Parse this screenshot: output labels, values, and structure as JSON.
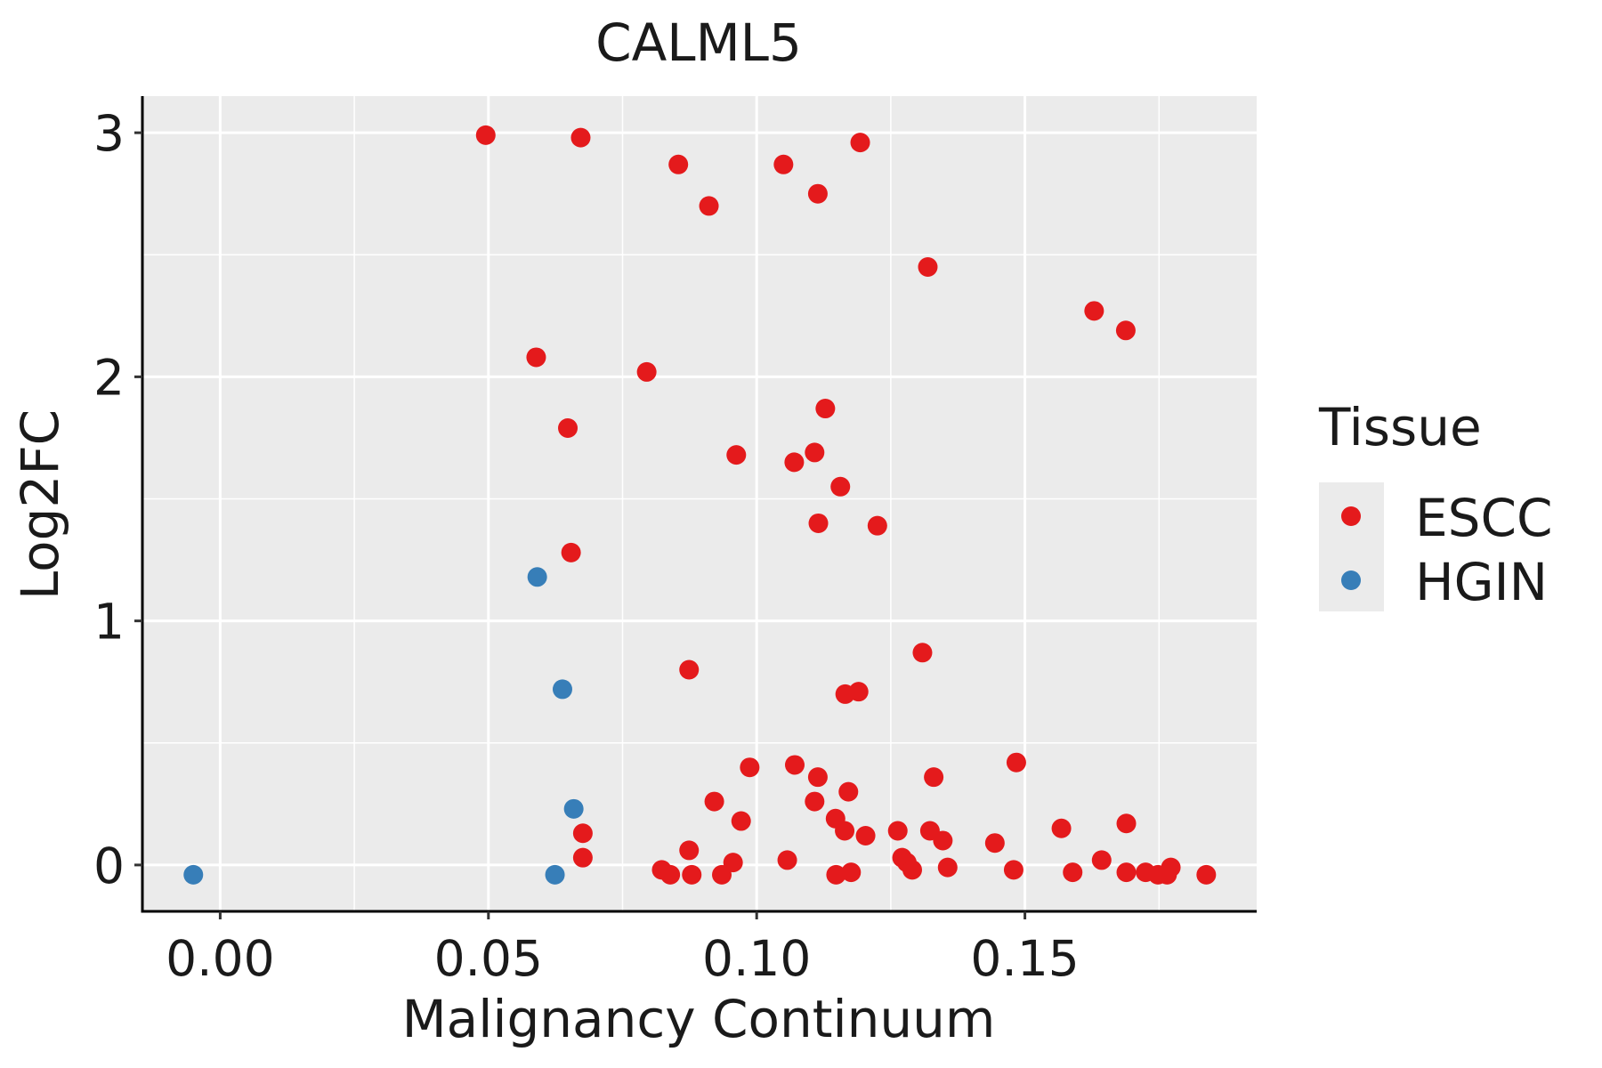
{
  "chart_data": {
    "type": "scatter",
    "title": "CALML5",
    "xlabel": "Malignancy Continuum",
    "ylabel": "Log2FC",
    "xlim": [
      -0.0145,
      0.1932
    ],
    "ylim": [
      -0.19,
      3.15
    ],
    "x_ticks": [
      0.0,
      0.05,
      0.1,
      0.15
    ],
    "x_tick_labels": [
      "0.00",
      "0.05",
      "0.10",
      "0.15"
    ],
    "y_ticks": [
      0,
      1,
      2,
      3
    ],
    "y_tick_labels": [
      "0",
      "1",
      "2",
      "3"
    ],
    "grid": true,
    "legend": {
      "title": "Tissue",
      "position": "right",
      "entries": [
        {
          "label": "ESCC",
          "color": "#E41A1C"
        },
        {
          "label": "HGIN",
          "color": "#377EB8"
        }
      ]
    },
    "panel_background": "#EBEBEB",
    "series": [
      {
        "name": "ESCC",
        "color": "#E41A1C",
        "points": [
          [
            0.0495,
            2.99
          ],
          [
            0.0672,
            2.98
          ],
          [
            0.0854,
            2.87
          ],
          [
            0.0911,
            2.7
          ],
          [
            0.105,
            2.87
          ],
          [
            0.1114,
            2.75
          ],
          [
            0.1193,
            2.96
          ],
          [
            0.1319,
            2.45
          ],
          [
            0.1629,
            2.27
          ],
          [
            0.1688,
            2.19
          ],
          [
            0.0589,
            2.08
          ],
          [
            0.0795,
            2.02
          ],
          [
            0.0648,
            1.79
          ],
          [
            0.1128,
            1.87
          ],
          [
            0.0962,
            1.68
          ],
          [
            0.107,
            1.65
          ],
          [
            0.1108,
            1.69
          ],
          [
            0.1156,
            1.55
          ],
          [
            0.1115,
            1.4
          ],
          [
            0.1225,
            1.39
          ],
          [
            0.0654,
            1.28
          ],
          [
            0.1309,
            0.87
          ],
          [
            0.0874,
            0.8
          ],
          [
            0.1165,
            0.7
          ],
          [
            0.119,
            0.71
          ],
          [
            0.0987,
            0.4
          ],
          [
            0.1071,
            0.41
          ],
          [
            0.1114,
            0.36
          ],
          [
            0.133,
            0.36
          ],
          [
            0.1484,
            0.42
          ],
          [
            0.0921,
            0.26
          ],
          [
            0.1108,
            0.26
          ],
          [
            0.1171,
            0.3
          ],
          [
            0.0676,
            0.13
          ],
          [
            0.0971,
            0.18
          ],
          [
            0.1147,
            0.19
          ],
          [
            0.1164,
            0.14
          ],
          [
            0.1203,
            0.12
          ],
          [
            0.1263,
            0.14
          ],
          [
            0.1323,
            0.14
          ],
          [
            0.1347,
            0.1
          ],
          [
            0.1444,
            0.09
          ],
          [
            0.1568,
            0.15
          ],
          [
            0.1689,
            0.17
          ],
          [
            0.0676,
            0.03
          ],
          [
            0.0874,
            0.06
          ],
          [
            0.0956,
            0.01
          ],
          [
            0.1057,
            0.02
          ],
          [
            0.1271,
            0.03
          ],
          [
            0.128,
            0.01
          ],
          [
            0.1643,
            0.02
          ],
          [
            0.0823,
            -0.02
          ],
          [
            0.0839,
            -0.04
          ],
          [
            0.0879,
            -0.04
          ],
          [
            0.0935,
            -0.04
          ],
          [
            0.1148,
            -0.04
          ],
          [
            0.1176,
            -0.03
          ],
          [
            0.129,
            -0.02
          ],
          [
            0.1356,
            -0.01
          ],
          [
            0.1479,
            -0.02
          ],
          [
            0.1589,
            -0.03
          ],
          [
            0.1689,
            -0.03
          ],
          [
            0.1725,
            -0.03
          ],
          [
            0.1748,
            -0.04
          ],
          [
            0.1765,
            -0.04
          ],
          [
            0.1772,
            -0.01
          ],
          [
            0.1838,
            -0.04
          ]
        ]
      },
      {
        "name": "HGIN",
        "color": "#377EB8",
        "points": [
          [
            -0.005,
            -0.04
          ],
          [
            0.0591,
            1.18
          ],
          [
            0.0638,
            0.72
          ],
          [
            0.0659,
            0.23
          ],
          [
            0.0624,
            -0.04
          ]
        ]
      }
    ]
  }
}
